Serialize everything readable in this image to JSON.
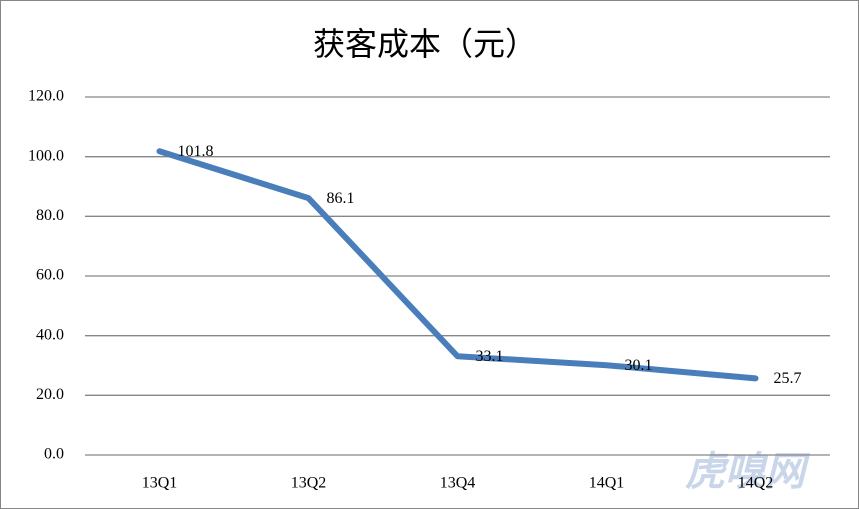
{
  "chart_data": {
    "type": "line",
    "title": "获客成本（元）",
    "categories": [
      "13Q1",
      "13Q2",
      "13Q4",
      "14Q1",
      "14Q2"
    ],
    "series": [
      {
        "name": "获客成本",
        "color": "#4a7ebb",
        "values": [
          101.8,
          86.1,
          33.1,
          30.1,
          25.7
        ]
      }
    ],
    "ylim": [
      0,
      120
    ],
    "yticks": [
      {
        "value": 0,
        "label": "0.0"
      },
      {
        "value": 20,
        "label": "20.0"
      },
      {
        "value": 40,
        "label": "40.0"
      },
      {
        "value": 60,
        "label": "60.0"
      },
      {
        "value": 80,
        "label": "80.0"
      },
      {
        "value": 100,
        "label": "100.0"
      },
      {
        "value": 120,
        "label": "120.0"
      }
    ],
    "grid": true,
    "data_labels": true
  },
  "watermark": "虎嗅网"
}
